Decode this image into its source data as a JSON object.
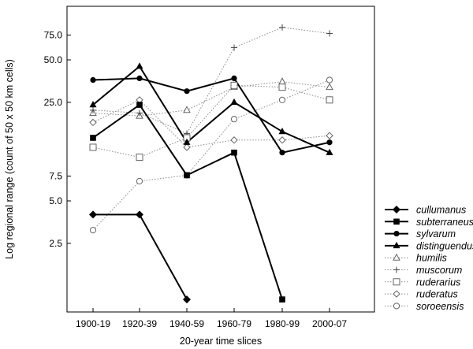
{
  "chart_data": {
    "type": "line",
    "xlabel": "20-year time slices",
    "ylabel": "Log regional range (count of 50 x 50 km cells)",
    "categories": [
      "1900-19",
      "1920-39",
      "1940-59",
      "1960-79",
      "1980-99",
      "2000-07"
    ],
    "y_scale": "log",
    "ylim": [
      0.8,
      120
    ],
    "y_ticks": [
      2.5,
      5.0,
      7.5,
      25.0,
      50.0,
      75.0
    ],
    "y_tick_labels": [
      "2.5",
      "5.0",
      "7.5",
      "25.0",
      "50.0",
      "75.0"
    ],
    "grid": false,
    "legend_position": "right-bottom",
    "series": [
      {
        "name": "cullumanus",
        "line": "solid",
        "weight": "bold",
        "marker": "filled-diamond",
        "values": [
          4,
          4,
          1,
          null,
          null,
          null
        ]
      },
      {
        "name": "subterraneus",
        "line": "solid",
        "weight": "bold",
        "marker": "filled-square",
        "values": [
          14,
          24,
          7.6,
          11,
          1,
          null
        ]
      },
      {
        "name": "sylvarum",
        "line": "solid",
        "weight": "bold",
        "marker": "filled-circle",
        "values": [
          36,
          37,
          30,
          37,
          11,
          13
        ]
      },
      {
        "name": "distinguendus",
        "line": "solid",
        "weight": "bold",
        "marker": "filled-triangle",
        "values": [
          24,
          45,
          13,
          25,
          15.5,
          11
        ]
      },
      {
        "name": "humilis",
        "line": "dotted",
        "weight": "thin",
        "marker": "open-triangle",
        "values": [
          21,
          20,
          22,
          32,
          35,
          32
        ]
      },
      {
        "name": "muscorum",
        "line": "dotted",
        "weight": "thin",
        "marker": "plus",
        "values": [
          22,
          21,
          15,
          61,
          85,
          77
        ]
      },
      {
        "name": "ruderarius",
        "line": "dotted",
        "weight": "thin",
        "marker": "open-square",
        "values": [
          12,
          10.2,
          14,
          33,
          32,
          26
        ]
      },
      {
        "name": "ruderatus",
        "line": "dotted",
        "weight": "thin",
        "marker": "open-diamond",
        "values": [
          18,
          26,
          12,
          13.5,
          13.5,
          14.5
        ]
      },
      {
        "name": "soroeensis",
        "line": "dotted",
        "weight": "thin",
        "marker": "open-circle",
        "values": [
          3.1,
          6.9,
          7.6,
          19,
          26,
          36
        ]
      }
    ]
  }
}
